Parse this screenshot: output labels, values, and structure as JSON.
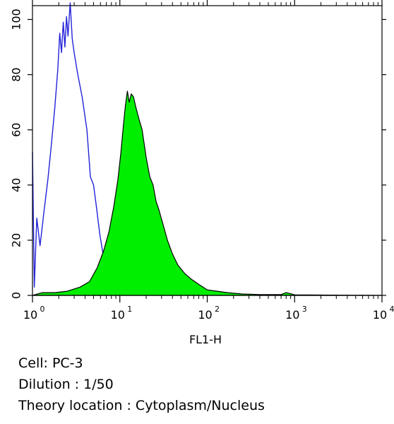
{
  "chart_data": {
    "type": "area",
    "xlabel": "FL1-H",
    "ylabel": "",
    "x_scale": "log",
    "xlim": [
      1,
      10000
    ],
    "ylim": [
      0,
      105
    ],
    "x_ticks": [
      {
        "base": "10",
        "exp": "0",
        "value": 1
      },
      {
        "base": "10",
        "exp": "1",
        "value": 10
      },
      {
        "base": "10",
        "exp": "2",
        "value": 100
      },
      {
        "base": "10",
        "exp": "3",
        "value": 1000
      },
      {
        "base": "10",
        "exp": "4",
        "value": 10000
      }
    ],
    "y_ticks": [
      "0",
      "20",
      "40",
      "60",
      "80",
      "100"
    ],
    "grid": false,
    "series": [
      {
        "style": "outline",
        "color": "#2323d9",
        "points": [
          [
            1.0,
            52
          ],
          [
            1.05,
            3
          ],
          [
            1.12,
            28
          ],
          [
            1.22,
            18
          ],
          [
            1.35,
            30
          ],
          [
            1.5,
            42
          ],
          [
            1.65,
            55
          ],
          [
            1.8,
            68
          ],
          [
            1.95,
            82
          ],
          [
            2.05,
            95
          ],
          [
            2.15,
            88
          ],
          [
            2.25,
            99
          ],
          [
            2.35,
            90
          ],
          [
            2.45,
            101
          ],
          [
            2.55,
            94
          ],
          [
            2.7,
            106
          ],
          [
            2.85,
            93
          ],
          [
            3.0,
            88
          ],
          [
            3.3,
            80
          ],
          [
            3.7,
            72
          ],
          [
            4.2,
            60
          ],
          [
            4.6,
            43
          ],
          [
            5.0,
            40
          ],
          [
            5.4,
            32
          ],
          [
            5.9,
            22
          ],
          [
            6.5,
            14
          ],
          [
            7.3,
            7
          ],
          [
            8.5,
            3
          ],
          [
            10,
            1
          ],
          [
            13,
            0.5
          ],
          [
            20,
            0
          ]
        ]
      },
      {
        "style": "filled",
        "color": "#00ee00",
        "points": [
          [
            1.0,
            0
          ],
          [
            1.3,
            1
          ],
          [
            1.8,
            1
          ],
          [
            2.5,
            1.5
          ],
          [
            3.5,
            3
          ],
          [
            4.5,
            5
          ],
          [
            5.5,
            10
          ],
          [
            6.5,
            16
          ],
          [
            7.5,
            23
          ],
          [
            8.5,
            32
          ],
          [
            9.5,
            42
          ],
          [
            10.3,
            52
          ],
          [
            11.0,
            62
          ],
          [
            11.6,
            69
          ],
          [
            12.2,
            74
          ],
          [
            12.8,
            70
          ],
          [
            13.5,
            73
          ],
          [
            14.3,
            72
          ],
          [
            15.3,
            68
          ],
          [
            16.5,
            64
          ],
          [
            18,
            60
          ],
          [
            20,
            50
          ],
          [
            22,
            43
          ],
          [
            24,
            40
          ],
          [
            26,
            34
          ],
          [
            28,
            31
          ],
          [
            31,
            26
          ],
          [
            35,
            20
          ],
          [
            40,
            15
          ],
          [
            46,
            11
          ],
          [
            55,
            8
          ],
          [
            65,
            6
          ],
          [
            80,
            4
          ],
          [
            100,
            2
          ],
          [
            130,
            1.5
          ],
          [
            170,
            1
          ],
          [
            250,
            0.5
          ],
          [
            400,
            0.3
          ],
          [
            700,
            0.3
          ],
          [
            800,
            1
          ],
          [
            1000,
            0.2
          ],
          [
            10000,
            0
          ]
        ]
      }
    ]
  },
  "caption": {
    "cell": "Cell: PC-3",
    "dilution": "Dilution : 1/50",
    "location": "Theory location : Cytoplasm/Nucleus"
  }
}
